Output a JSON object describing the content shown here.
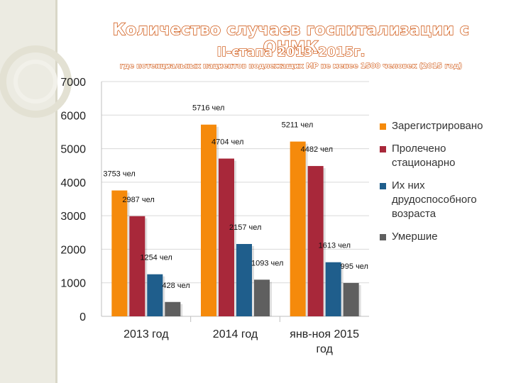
{
  "title": "Количество случаев госпитализации с ОНМК",
  "title_line2": "II-єтапа 2013-2015г.",
  "subtitle": "где потенциальных пациентов подлежащих МР не менее 1500 человек (2015 год)",
  "colors": {
    "background": "#ffffff",
    "title_outline": "#cc4a00",
    "decor_left": "#ecebe2",
    "grid": "#d9d9d9"
  },
  "chart_data": {
    "type": "bar",
    "categories": [
      "2013 год",
      "2014 год",
      "янв-ноя 2015 год"
    ],
    "category_lines": [
      [
        "2013 год"
      ],
      [
        "2014 год"
      ],
      [
        "янв-ноя 2015",
        "год"
      ]
    ],
    "series": [
      {
        "name": "Зарегистрировано",
        "color": "#f58a0b",
        "values": [
          3753,
          5716,
          5211
        ],
        "labels": [
          "3753 чел",
          "5716 чел",
          "5211 чел"
        ]
      },
      {
        "name": "Пролечено стационарно",
        "color": "#a8283a",
        "values": [
          2987,
          4704,
          4482
        ],
        "labels": [
          "2987 чел",
          "4704 чел",
          "4482 чел"
        ]
      },
      {
        "name": "Их них друдоспособного возраста",
        "color": "#1f5e8c",
        "values": [
          1254,
          2157,
          1613
        ],
        "labels": [
          "1254 чел",
          "2157 чел",
          "1613 чел"
        ]
      },
      {
        "name": "Умершие",
        "color": "#5f5f5f",
        "values": [
          428,
          1093,
          995
        ],
        "labels": [
          "428 чел",
          "1093 чел",
          "995 чел"
        ]
      }
    ],
    "legend_labels": [
      "Зарегистрировано",
      "Пролечено\nстационарно",
      "Их них\nдрудоспособного\nвозраста",
      "Умершие"
    ],
    "yticks": [
      "0",
      "1000",
      "2000",
      "3000",
      "4000",
      "5000",
      "6000",
      "7000"
    ],
    "ylim": [
      0,
      7000
    ],
    "grid": true,
    "legend": "right"
  }
}
